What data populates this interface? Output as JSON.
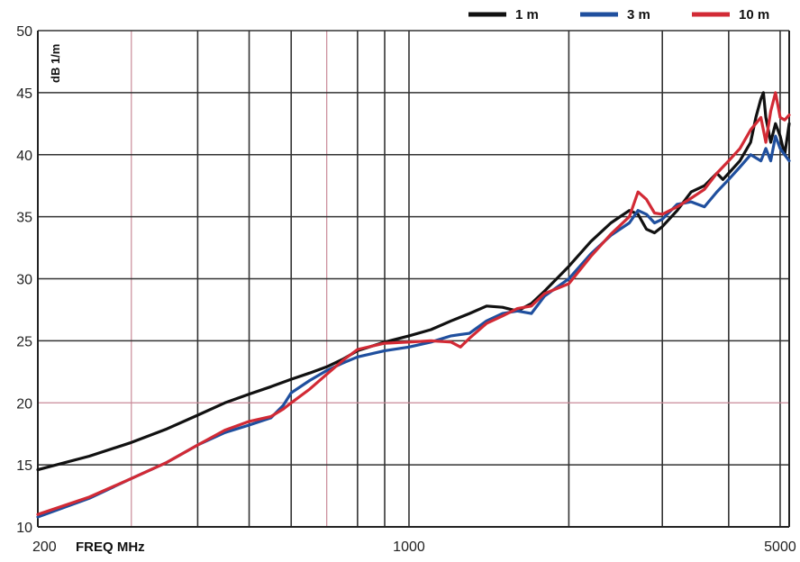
{
  "chart_data": {
    "type": "line",
    "x_scale": "log",
    "xlim": [
      200,
      5200
    ],
    "ylim": [
      10,
      50
    ],
    "grid": true,
    "x_tick_labels": [
      "200",
      "1000",
      "5000"
    ],
    "x_axis_label": "FREQ  MHz",
    "y_ticks": [
      10,
      15,
      20,
      25,
      30,
      35,
      40,
      45,
      50
    ],
    "y_unit_label": "dB 1/m",
    "legend_position": "top-right",
    "series": [
      {
        "name": "1 m",
        "color": "#111111",
        "points": [
          [
            200,
            14.6
          ],
          [
            250,
            15.7
          ],
          [
            300,
            16.8
          ],
          [
            350,
            17.9
          ],
          [
            400,
            19.0
          ],
          [
            450,
            20.0
          ],
          [
            500,
            20.7
          ],
          [
            550,
            21.3
          ],
          [
            600,
            21.9
          ],
          [
            650,
            22.4
          ],
          [
            700,
            22.9
          ],
          [
            750,
            23.5
          ],
          [
            800,
            24.2
          ],
          [
            900,
            24.9
          ],
          [
            1000,
            25.4
          ],
          [
            1100,
            25.9
          ],
          [
            1200,
            26.6
          ],
          [
            1300,
            27.2
          ],
          [
            1400,
            27.8
          ],
          [
            1500,
            27.7
          ],
          [
            1600,
            27.4
          ],
          [
            1700,
            28.0
          ],
          [
            1800,
            29.0
          ],
          [
            2000,
            31.0
          ],
          [
            2200,
            33.0
          ],
          [
            2400,
            34.5
          ],
          [
            2600,
            35.5
          ],
          [
            2700,
            35.2
          ],
          [
            2800,
            34.0
          ],
          [
            2900,
            33.7
          ],
          [
            3000,
            34.2
          ],
          [
            3200,
            35.5
          ],
          [
            3400,
            37.0
          ],
          [
            3600,
            37.5
          ],
          [
            3800,
            38.5
          ],
          [
            3900,
            38.0
          ],
          [
            4000,
            38.5
          ],
          [
            4200,
            39.5
          ],
          [
            4400,
            41.0
          ],
          [
            4500,
            43.0
          ],
          [
            4600,
            44.5
          ],
          [
            4650,
            45.0
          ],
          [
            4700,
            43.0
          ],
          [
            4800,
            41.0
          ],
          [
            4900,
            42.5
          ],
          [
            5000,
            41.5
          ],
          [
            5100,
            40.0
          ],
          [
            5200,
            42.5
          ]
        ]
      },
      {
        "name": "3 m",
        "color": "#1f4f9e",
        "points": [
          [
            200,
            10.8
          ],
          [
            250,
            12.3
          ],
          [
            300,
            13.9
          ],
          [
            350,
            15.2
          ],
          [
            400,
            16.6
          ],
          [
            450,
            17.6
          ],
          [
            500,
            18.2
          ],
          [
            550,
            18.8
          ],
          [
            580,
            19.8
          ],
          [
            600,
            20.8
          ],
          [
            650,
            21.8
          ],
          [
            700,
            22.6
          ],
          [
            750,
            23.2
          ],
          [
            800,
            23.7
          ],
          [
            900,
            24.2
          ],
          [
            1000,
            24.5
          ],
          [
            1100,
            24.9
          ],
          [
            1200,
            25.4
          ],
          [
            1300,
            25.6
          ],
          [
            1400,
            26.6
          ],
          [
            1500,
            27.2
          ],
          [
            1600,
            27.4
          ],
          [
            1700,
            27.2
          ],
          [
            1800,
            28.6
          ],
          [
            2000,
            30.0
          ],
          [
            2200,
            32.0
          ],
          [
            2400,
            33.5
          ],
          [
            2600,
            34.5
          ],
          [
            2700,
            35.5
          ],
          [
            2800,
            35.2
          ],
          [
            2900,
            34.5
          ],
          [
            3000,
            34.8
          ],
          [
            3200,
            36.0
          ],
          [
            3400,
            36.2
          ],
          [
            3600,
            35.8
          ],
          [
            3800,
            37.0
          ],
          [
            4000,
            38.0
          ],
          [
            4200,
            39.0
          ],
          [
            4400,
            40.0
          ],
          [
            4600,
            39.5
          ],
          [
            4700,
            40.5
          ],
          [
            4800,
            39.5
          ],
          [
            4900,
            41.5
          ],
          [
            5000,
            40.5
          ],
          [
            5100,
            40.0
          ],
          [
            5200,
            39.5
          ]
        ]
      },
      {
        "name": "10 m",
        "color": "#d22a35",
        "points": [
          [
            200,
            11.0
          ],
          [
            250,
            12.4
          ],
          [
            300,
            13.9
          ],
          [
            350,
            15.2
          ],
          [
            400,
            16.6
          ],
          [
            450,
            17.8
          ],
          [
            500,
            18.5
          ],
          [
            550,
            18.9
          ],
          [
            580,
            19.5
          ],
          [
            600,
            20.0
          ],
          [
            650,
            21.1
          ],
          [
            700,
            22.3
          ],
          [
            750,
            23.4
          ],
          [
            800,
            24.3
          ],
          [
            900,
            24.8
          ],
          [
            1000,
            24.9
          ],
          [
            1100,
            25.0
          ],
          [
            1200,
            24.9
          ],
          [
            1250,
            24.5
          ],
          [
            1300,
            25.2
          ],
          [
            1400,
            26.4
          ],
          [
            1500,
            27.0
          ],
          [
            1600,
            27.6
          ],
          [
            1700,
            27.8
          ],
          [
            1800,
            28.8
          ],
          [
            2000,
            29.6
          ],
          [
            2200,
            31.8
          ],
          [
            2400,
            33.6
          ],
          [
            2600,
            35.0
          ],
          [
            2700,
            37.0
          ],
          [
            2800,
            36.4
          ],
          [
            2900,
            35.3
          ],
          [
            3000,
            35.2
          ],
          [
            3200,
            35.8
          ],
          [
            3400,
            36.5
          ],
          [
            3600,
            37.2
          ],
          [
            3800,
            38.5
          ],
          [
            4000,
            39.5
          ],
          [
            4200,
            40.5
          ],
          [
            4400,
            42.0
          ],
          [
            4600,
            43.0
          ],
          [
            4700,
            41.0
          ],
          [
            4800,
            43.5
          ],
          [
            4900,
            45.0
          ],
          [
            5000,
            43.0
          ],
          [
            5100,
            42.8
          ],
          [
            5200,
            43.2
          ]
        ]
      }
    ]
  }
}
